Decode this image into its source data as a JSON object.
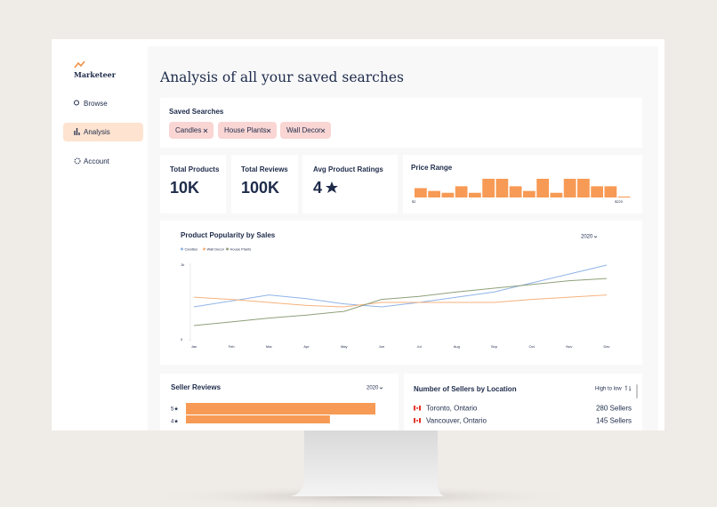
{
  "sidebar": {
    "brand": "Marketeer",
    "nav": [
      "Browse",
      "Analysis",
      "Account"
    ]
  },
  "title": "Analysis of all your saved searches",
  "saved_searches": {
    "label": "Saved Searches",
    "chips": [
      "Candles",
      "House Plants",
      "Wall Decor"
    ]
  },
  "stats": [
    {
      "label": "Total Products",
      "value": "10K"
    },
    {
      "label": "Total Reviews",
      "value": "100K"
    },
    {
      "label": "Avg Product Ratings",
      "value": "4"
    }
  ],
  "price_range": {
    "title": "Price Range",
    "min_label": "$2",
    "max_label": "$220",
    "color": "#f79a55",
    "values": [
      10,
      7,
      5,
      12,
      5,
      20,
      20,
      12,
      7,
      20,
      5,
      20,
      20,
      12,
      12,
      1
    ]
  },
  "chart_data": {
    "type": "line",
    "title": "Product Popularity by Sales",
    "year": "2020",
    "categories": [
      "Jan",
      "Feb",
      "Mar",
      "Apr",
      "May",
      "Jun",
      "Jul",
      "Aug",
      "Sep",
      "Oct",
      "Nov",
      "Dec"
    ],
    "series": [
      {
        "name": "Candles",
        "color": "#8fb4e8",
        "values": [
          440,
          520,
          600,
          550,
          480,
          440,
          500,
          570,
          640,
          760,
          880,
          1000
        ]
      },
      {
        "name": "Wall Decor",
        "color": "#f5b27e",
        "values": [
          570,
          540,
          500,
          460,
          440,
          500,
          500,
          500,
          500,
          540,
          570,
          600
        ]
      },
      {
        "name": "House Plants",
        "color": "#8ea07a",
        "values": [
          190,
          240,
          290,
          330,
          380,
          540,
          580,
          640,
          690,
          740,
          790,
          820
        ]
      }
    ],
    "ylim": [
      0,
      1000
    ],
    "yticks": [
      0,
      {
        "value": 1000,
        "label": "1k"
      }
    ]
  },
  "seller_reviews": {
    "title": "Seller Reviews",
    "year": "2020",
    "color": "#f79a55",
    "categories": [
      "5★",
      "4★"
    ],
    "values": [
      100,
      76
    ]
  },
  "sellers_by_location": {
    "title": "Number of Sellers by Location",
    "sort": "High to low",
    "rows": [
      {
        "location": "Toronto, Ontario",
        "count": "280 Sellers"
      },
      {
        "location": "Vancouver, Ontario",
        "count": "145 Sellers"
      }
    ]
  }
}
